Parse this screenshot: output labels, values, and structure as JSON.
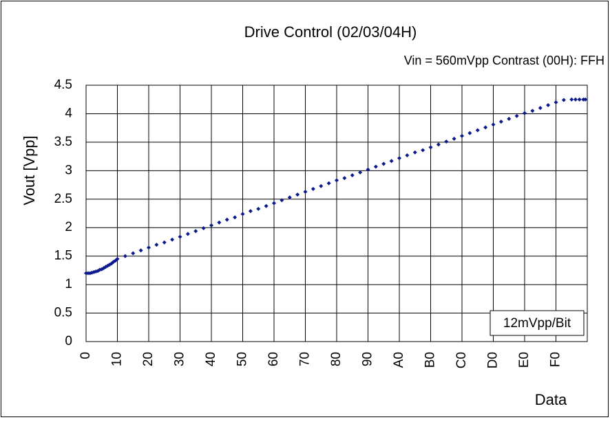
{
  "chart_data": {
    "type": "scatter",
    "title": "Drive Control (02/03/04H)",
    "subtitle": "Vin = 560mVpp Contrast (00H): FFH",
    "y_label": "Vout [Vpp]",
    "x_label": "Data",
    "annotation": "12mVpp/Bit",
    "color": "#0a1a8c",
    "grid": true,
    "xlim": [
      0,
      256
    ],
    "ylim": [
      0,
      4.5
    ],
    "xticks": [
      0,
      {
        "value": 16,
        "label": "10"
      },
      {
        "value": 32,
        "label": "20"
      },
      {
        "value": 48,
        "label": "30"
      },
      {
        "value": 64,
        "label": "40"
      },
      {
        "value": 80,
        "label": "50"
      },
      {
        "value": 96,
        "label": "60"
      },
      {
        "value": 112,
        "label": "70"
      },
      {
        "value": 128,
        "label": "80"
      },
      {
        "value": 144,
        "label": "90"
      },
      {
        "value": 160,
        "label": "A0"
      },
      {
        "value": 176,
        "label": "B0"
      },
      {
        "value": 192,
        "label": "C0"
      },
      {
        "value": 208,
        "label": "D0"
      },
      {
        "value": 224,
        "label": "E0"
      },
      {
        "value": 240,
        "label": "F0"
      }
    ],
    "yticks": [
      0,
      0.5,
      1,
      1.5,
      2,
      2.5,
      3,
      3.5,
      4,
      4.5
    ],
    "x": [
      0,
      1,
      2,
      3,
      4,
      5,
      6,
      7,
      8,
      9,
      10,
      11,
      12,
      13,
      14,
      15,
      16,
      20,
      24,
      28,
      32,
      36,
      40,
      44,
      48,
      52,
      56,
      60,
      64,
      68,
      72,
      76,
      80,
      84,
      88,
      92,
      96,
      100,
      104,
      108,
      112,
      116,
      120,
      124,
      128,
      132,
      136,
      140,
      144,
      148,
      152,
      156,
      160,
      164,
      168,
      172,
      176,
      180,
      184,
      188,
      192,
      196,
      200,
      204,
      208,
      212,
      216,
      220,
      224,
      228,
      232,
      236,
      240,
      244,
      248,
      250,
      252,
      254,
      255
    ],
    "values": [
      1.2,
      1.2,
      1.2,
      1.21,
      1.22,
      1.23,
      1.24,
      1.26,
      1.27,
      1.29,
      1.31,
      1.33,
      1.35,
      1.37,
      1.4,
      1.42,
      1.45,
      1.5,
      1.55,
      1.6,
      1.65,
      1.7,
      1.74,
      1.79,
      1.84,
      1.89,
      1.94,
      1.99,
      2.04,
      2.09,
      2.14,
      2.18,
      2.24,
      2.29,
      2.33,
      2.38,
      2.43,
      2.48,
      2.53,
      2.58,
      2.63,
      2.68,
      2.73,
      2.78,
      2.83,
      2.87,
      2.92,
      2.97,
      3.02,
      3.07,
      3.12,
      3.17,
      3.22,
      3.27,
      3.32,
      3.36,
      3.41,
      3.46,
      3.51,
      3.56,
      3.61,
      3.66,
      3.71,
      3.76,
      3.81,
      3.86,
      3.91,
      3.96,
      4.01,
      4.05,
      4.1,
      4.15,
      4.2,
      4.24,
      4.25,
      4.25,
      4.25,
      4.25,
      4.25
    ]
  }
}
